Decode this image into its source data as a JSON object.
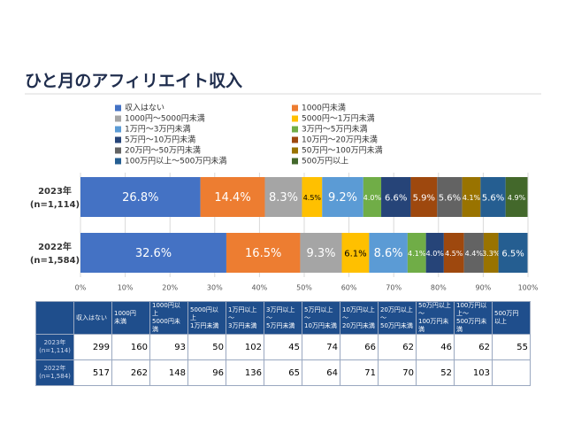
{
  "title": "ひと月のアフィリエイト収入",
  "chart_data": {
    "type": "stacked-bar-horizontal",
    "categories": [
      "2023年",
      "2022年"
    ],
    "sample_sizes": [
      "(n=1,114)",
      "(n=1,584)"
    ],
    "xlim": [
      0,
      100
    ],
    "xticks": [
      {
        "value": 0,
        "label": "0%"
      },
      {
        "value": 10,
        "label": "10%"
      },
      {
        "value": 20,
        "label": "20%"
      },
      {
        "value": 30,
        "label": "30%"
      },
      {
        "value": 40,
        "label": "40%"
      },
      {
        "value": 50,
        "label": "50%"
      },
      {
        "value": 60,
        "label": "60%"
      },
      {
        "value": 70,
        "label": "70%"
      },
      {
        "value": 80,
        "label": "80%"
      },
      {
        "value": 90,
        "label": "90%"
      },
      {
        "value": 100,
        "label": "100%"
      }
    ],
    "legend": "top-left",
    "series": [
      {
        "name": "収入はない",
        "color": "#4472c4",
        "values": [
          26.8,
          32.6
        ],
        "value_labels": [
          "26.8%",
          "32.6%"
        ]
      },
      {
        "name": "1000円未満",
        "color": "#ed7d31",
        "values": [
          14.4,
          16.5
        ],
        "value_labels": [
          "14.4%",
          "16.5%"
        ]
      },
      {
        "name": "1000円～5000円未満",
        "color": "#a5a5a5",
        "values": [
          8.3,
          9.3
        ],
        "value_labels": [
          "8.3%",
          "9.3%"
        ]
      },
      {
        "name": "5000円～1万円未満",
        "color": "#ffc000",
        "values": [
          4.5,
          6.1
        ],
        "value_labels": [
          "4.5%",
          "6.1%"
        ]
      },
      {
        "name": "1万円～3万円未満",
        "color": "#5b9bd5",
        "values": [
          9.2,
          8.6
        ],
        "value_labels": [
          "9.2%",
          "8.6%"
        ]
      },
      {
        "name": "3万円～5万円未満",
        "color": "#70ad47",
        "values": [
          4.0,
          4.1
        ],
        "value_labels": [
          "4.0%",
          "4.1%"
        ]
      },
      {
        "name": "5万円～10万円未満",
        "color": "#264478",
        "values": [
          6.6,
          4.0
        ],
        "value_labels": [
          "6.6%",
          "4.0%"
        ]
      },
      {
        "name": "10万円～20万円未満",
        "color": "#9e480e",
        "values": [
          5.9,
          4.5
        ],
        "value_labels": [
          "5.9%",
          "4.5%"
        ]
      },
      {
        "name": "20万円～50万円未満",
        "color": "#636363",
        "values": [
          5.6,
          4.4
        ],
        "value_labels": [
          "5.6%",
          "4.4%"
        ]
      },
      {
        "name": "50万円～100万円未満",
        "color": "#997300",
        "values": [
          4.1,
          3.3
        ],
        "value_labels": [
          "4.1%",
          "3.3%"
        ]
      },
      {
        "name": "100万円以上～500万円未満",
        "color": "#255e91",
        "values": [
          5.6,
          6.5
        ],
        "value_labels": [
          "5.6%",
          "6.5%"
        ]
      },
      {
        "name": "500万円以上",
        "color": "#43682b",
        "values": [
          4.9,
          null
        ],
        "value_labels": [
          "4.9%",
          null
        ]
      }
    ]
  },
  "table": {
    "headers": [
      [
        "収入はない"
      ],
      [
        "1000円",
        "未満"
      ],
      [
        "1000円以上",
        "5000円未満"
      ],
      [
        "5000円以上",
        "1万円未満"
      ],
      [
        "1万円以上～",
        "3万円未満"
      ],
      [
        "3万円以上～",
        "5万円未満"
      ],
      [
        "5万円以上～",
        "10万円未満"
      ],
      [
        "10万円以上～",
        "20万円未満"
      ],
      [
        "20万円以上～",
        "50万円未満"
      ],
      [
        "50万円以上～",
        "100万円未満"
      ],
      [
        "100万円以上～",
        "500万円未満"
      ],
      [
        "500万円",
        "以上"
      ]
    ],
    "row_labels": [
      [
        "2023年",
        "(n=1,114)"
      ],
      [
        "2022年",
        "(n=1,584)"
      ]
    ],
    "rows": [
      [
        299,
        160,
        93,
        50,
        102,
        45,
        74,
        66,
        62,
        46,
        62,
        55
      ],
      [
        517,
        262,
        148,
        96,
        136,
        65,
        64,
        71,
        70,
        52,
        103,
        null
      ]
    ]
  }
}
